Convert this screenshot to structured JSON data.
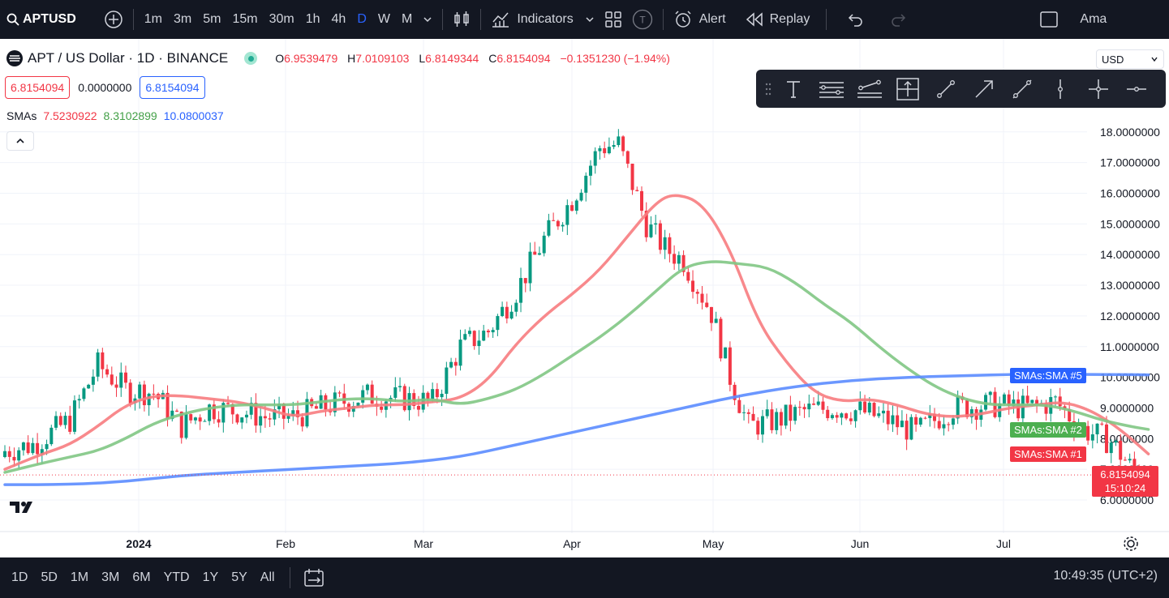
{
  "toolbar": {
    "symbol": "APTUSD",
    "intervals": [
      "1m",
      "3m",
      "5m",
      "15m",
      "30m",
      "1h",
      "4h",
      "D",
      "W",
      "M"
    ],
    "active_interval": "D",
    "indicators_label": "Indicators",
    "alert_label": "Alert",
    "replay_label": "Replay",
    "account_label": "Ama"
  },
  "legend": {
    "title": "APT / US Dollar · 1D · BINANCE",
    "open_label": "O",
    "open": "6.9539479",
    "high_label": "H",
    "high": "7.0109103",
    "low_label": "L",
    "low": "6.8149344",
    "close_label": "C",
    "close": "6.8154094",
    "change": "−0.1351230 (−1.94%)",
    "bid": "6.8154094",
    "spread": "0.0000000",
    "ask": "6.8154094",
    "smas_label": "SMAs",
    "sma1": "7.5230922",
    "sma2": "8.3102899",
    "sma3": "10.0800037"
  },
  "currency": "USD",
  "price_axis": [
    "18.0000000",
    "17.0000000",
    "16.0000000",
    "15.0000000",
    "14.0000000",
    "13.0000000",
    "12.0000000",
    "11.0000000",
    "10.0000000",
    "9.0000000",
    "8.0000000",
    "7.0000000",
    "6.0000000"
  ],
  "time_axis": [
    "2024",
    "Feb",
    "Mar",
    "Apr",
    "May",
    "Jun",
    "Jul"
  ],
  "series_tags": {
    "sma5": "SMAs:SMA #5",
    "sma2": "SMAs:SMA #2",
    "sma1": "SMAs:SMA #1"
  },
  "last_price": {
    "value": "6.8154094",
    "countdown": "15:10:24"
  },
  "colors": {
    "up": "#089981",
    "down": "#f23645",
    "sma1": "#f77c80",
    "sma2": "#81c784",
    "sma5": "#5b8cff"
  },
  "bottombar": {
    "ranges": [
      "1D",
      "5D",
      "1M",
      "3M",
      "6M",
      "YTD",
      "1Y",
      "5Y",
      "All"
    ],
    "clock": "10:49:35 (UTC+2)"
  },
  "chart_data": {
    "type": "candlestick",
    "ylim": [
      5.6,
      18.9
    ],
    "series": [
      {
        "name": "SMAs:SMA #1",
        "points": [
          [
            0,
            7.0
          ],
          [
            8,
            7.5
          ],
          [
            14,
            7.8
          ],
          [
            20,
            8.4
          ],
          [
            26,
            9.1
          ],
          [
            32,
            9.4
          ],
          [
            38,
            9.4
          ],
          [
            44,
            9.3
          ],
          [
            50,
            9.2
          ],
          [
            56,
            9.0
          ],
          [
            62,
            8.7
          ],
          [
            68,
            8.9
          ],
          [
            74,
            9.0
          ],
          [
            80,
            9.1
          ],
          [
            86,
            9.1
          ],
          [
            92,
            9.2
          ],
          [
            98,
            9.3
          ],
          [
            104,
            9.9
          ],
          [
            110,
            11.1
          ],
          [
            116,
            12.0
          ],
          [
            122,
            12.7
          ],
          [
            128,
            13.5
          ],
          [
            134,
            14.6
          ],
          [
            140,
            15.7
          ],
          [
            144,
            16.0
          ],
          [
            150,
            15.7
          ],
          [
            156,
            14.2
          ],
          [
            162,
            11.8
          ],
          [
            168,
            10.5
          ],
          [
            174,
            9.5
          ],
          [
            180,
            9.2
          ],
          [
            186,
            9.3
          ],
          [
            192,
            9.1
          ],
          [
            198,
            8.8
          ],
          [
            204,
            8.7
          ],
          [
            210,
            8.8
          ],
          [
            216,
            9.0
          ],
          [
            222,
            9.1
          ],
          [
            228,
            9.2
          ],
          [
            234,
            8.9
          ],
          [
            240,
            8.3
          ],
          [
            246,
            7.5
          ]
        ]
      },
      {
        "name": "SMAs:SMA #2",
        "points": [
          [
            0,
            6.9
          ],
          [
            8,
            7.2
          ],
          [
            14,
            7.4
          ],
          [
            20,
            7.6
          ],
          [
            26,
            8.0
          ],
          [
            32,
            8.5
          ],
          [
            38,
            8.8
          ],
          [
            44,
            9.0
          ],
          [
            50,
            9.1
          ],
          [
            56,
            9.1
          ],
          [
            62,
            9.1
          ],
          [
            68,
            9.2
          ],
          [
            74,
            9.3
          ],
          [
            80,
            9.3
          ],
          [
            86,
            9.2
          ],
          [
            92,
            9.3
          ],
          [
            98,
            9.1
          ],
          [
            104,
            9.3
          ],
          [
            110,
            9.6
          ],
          [
            116,
            10.1
          ],
          [
            122,
            10.7
          ],
          [
            128,
            11.3
          ],
          [
            134,
            12.0
          ],
          [
            140,
            12.8
          ],
          [
            146,
            13.6
          ],
          [
            152,
            13.8
          ],
          [
            158,
            13.7
          ],
          [
            164,
            13.6
          ],
          [
            170,
            13.1
          ],
          [
            176,
            12.4
          ],
          [
            182,
            11.8
          ],
          [
            188,
            11.0
          ],
          [
            194,
            10.3
          ],
          [
            200,
            9.7
          ],
          [
            206,
            9.3
          ],
          [
            212,
            9.1
          ],
          [
            218,
            9.1
          ],
          [
            224,
            9.1
          ],
          [
            230,
            8.9
          ],
          [
            236,
            8.6
          ],
          [
            242,
            8.4
          ],
          [
            246,
            8.3
          ]
        ]
      },
      {
        "name": "SMAs:SMA #5",
        "points": [
          [
            0,
            6.5
          ],
          [
            14,
            6.5
          ],
          [
            26,
            6.6
          ],
          [
            38,
            6.8
          ],
          [
            50,
            6.9
          ],
          [
            62,
            7.0
          ],
          [
            74,
            7.1
          ],
          [
            86,
            7.2
          ],
          [
            98,
            7.4
          ],
          [
            110,
            7.8
          ],
          [
            122,
            8.2
          ],
          [
            134,
            8.6
          ],
          [
            146,
            9.0
          ],
          [
            158,
            9.4
          ],
          [
            170,
            9.7
          ],
          [
            182,
            9.9
          ],
          [
            194,
            10.0
          ],
          [
            206,
            10.05
          ],
          [
            218,
            10.1
          ],
          [
            230,
            10.1
          ],
          [
            246,
            10.08
          ]
        ]
      }
    ]
  }
}
